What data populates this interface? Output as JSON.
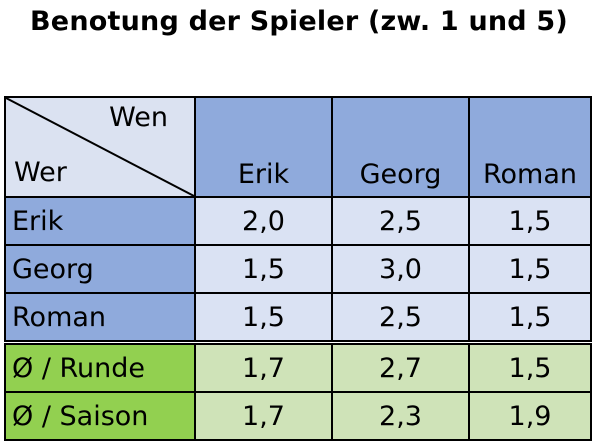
{
  "title": "Benotung der Spieler (zw. 1 und 5)",
  "table": {
    "corner": {
      "top_label": "Wen",
      "bottom_label": "Wer"
    },
    "columns": [
      "Erik",
      "Georg",
      "Roman"
    ],
    "rows": [
      {
        "label": "Erik",
        "values": [
          "2,0",
          "2,5",
          "1,5"
        ]
      },
      {
        "label": "Georg",
        "values": [
          "1,5",
          "3,0",
          "1,5"
        ]
      },
      {
        "label": "Roman",
        "values": [
          "1,5",
          "2,5",
          "1,5"
        ]
      }
    ],
    "summary_rows": [
      {
        "label": "Ø / Runde",
        "values": [
          "1,7",
          "2,7",
          "1,5"
        ]
      },
      {
        "label": "Ø / Saison",
        "values": [
          "1,7",
          "2,3",
          "1,9"
        ]
      }
    ]
  },
  "colors": {
    "header_blue": "#8faadc",
    "cell_light_blue": "#dae2f3",
    "summary_green": "#92d050",
    "summary_light_green": "#cfe3b8"
  }
}
